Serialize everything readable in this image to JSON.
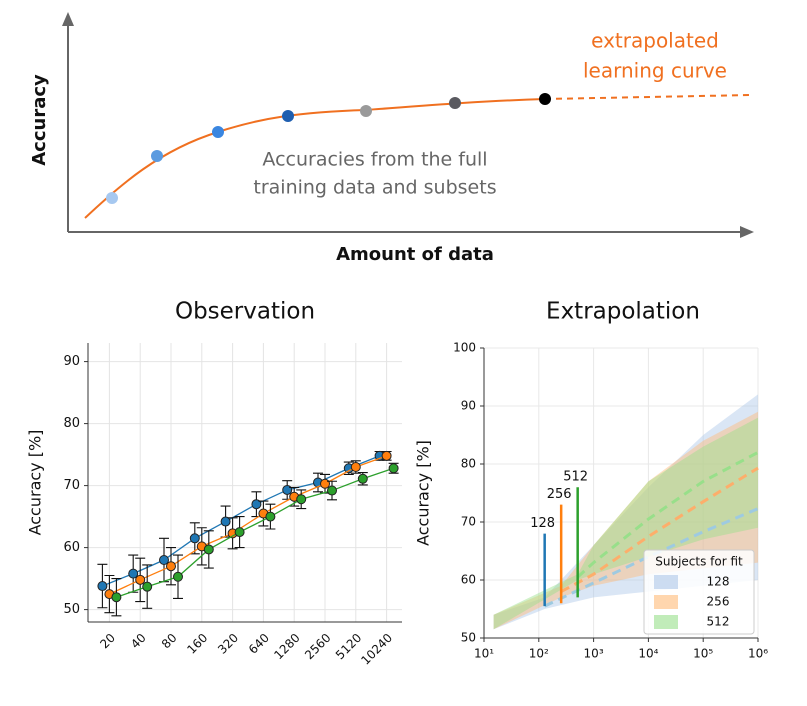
{
  "schematic": {
    "y_label": "Accuracy",
    "x_label": "Amount of data",
    "curve_note": [
      "extrapolated",
      "learning curve"
    ],
    "points_note": [
      "Accuracies from the full",
      "training data and subsets"
    ]
  },
  "chart_data": [
    {
      "type": "errorline",
      "title": "Observation",
      "y_label": "Accuracy [%]",
      "categories": [
        "20",
        "40",
        "80",
        "160",
        "320",
        "640",
        "1280",
        "2560",
        "5120",
        "10240"
      ],
      "ylim": [
        48,
        93
      ],
      "yticks": [
        50,
        60,
        70,
        80,
        90
      ],
      "grid": true,
      "series": [
        {
          "color": "#1f77b4",
          "values": [
            53.8,
            55.8,
            58,
            61.5,
            64.2,
            67,
            69.3,
            70.5,
            72.8,
            74.8
          ],
          "errors": [
            3.5,
            3,
            3.5,
            2.5,
            2.5,
            2,
            1.5,
            1.5,
            1,
            0.7
          ]
        },
        {
          "color": "#ff7f0e",
          "values": [
            52.5,
            54.8,
            57,
            60.2,
            62.3,
            65.5,
            68.2,
            70.3,
            73,
            74.8
          ],
          "errors": [
            3,
            3.5,
            3,
            3,
            2.5,
            2,
            1.5,
            1.5,
            1,
            0.7
          ]
        },
        {
          "color": "#2ca02c",
          "values": [
            52,
            53.7,
            55.3,
            59.7,
            62.5,
            65,
            67.8,
            69.2,
            71.1,
            72.8
          ],
          "errors": [
            3,
            3.5,
            3.5,
            3,
            2.5,
            2,
            1.5,
            1.5,
            1,
            0.8
          ]
        }
      ]
    },
    {
      "type": "band",
      "title": "Extrapolation",
      "y_label": "Accuracy [%]",
      "log_x": true,
      "xlim": [
        10,
        1000000
      ],
      "ylim": [
        50,
        100
      ],
      "xticks": [
        {
          "value": 10,
          "label": "10¹"
        },
        {
          "value": 100,
          "label": "10²"
        },
        {
          "value": 1000,
          "label": "10³"
        },
        {
          "value": 10000,
          "label": "10⁴"
        },
        {
          "value": 100000,
          "label": "10⁵"
        },
        {
          "value": 1000000,
          "label": "10⁶"
        }
      ],
      "yticks": [
        50,
        60,
        70,
        80,
        90,
        100
      ],
      "grid": true,
      "legend_title": "Subjects for fit",
      "legend": "lower right",
      "series": [
        {
          "name": "128",
          "color": "#9ecae1",
          "band_color": "#aec7e8",
          "x": [
            15,
            128,
            1000,
            10000,
            100000,
            1000000
          ],
          "values": [
            null,
            55.5,
            59.5,
            64,
            68.3,
            72.3
          ],
          "lower": [
            51.5,
            55,
            57,
            58,
            59,
            60
          ],
          "upper": [
            54,
            57,
            66,
            76,
            85,
            92
          ]
        },
        {
          "name": "256",
          "color": "#fdae6b",
          "band_color": "#ffbb78",
          "x": [
            15,
            256,
            1000,
            10000,
            100000,
            1000000
          ],
          "values": [
            null,
            58,
            61,
            67.5,
            73.5,
            79.3
          ],
          "lower": [
            51.5,
            57,
            59,
            61,
            62,
            63
          ],
          "upper": [
            54,
            59,
            66,
            77,
            84,
            89
          ]
        },
        {
          "name": "512",
          "color": "#98df8a",
          "band_color": "#98df8a",
          "x": [
            15,
            512,
            1000,
            10000,
            100000,
            1000000
          ],
          "values": [
            null,
            60.5,
            63,
            70.5,
            77,
            82
          ],
          "lower": [
            51.5,
            60,
            61,
            64,
            67,
            69
          ],
          "upper": [
            54,
            61,
            66,
            77,
            83,
            88
          ]
        }
      ],
      "vlines": [
        {
          "x": 128,
          "ymin": 55.5,
          "ymax": 68,
          "label": "128",
          "color": "#1f77b4"
        },
        {
          "x": 256,
          "ymin": 56,
          "ymax": 73,
          "label": "256",
          "color": "#ff7f0e"
        },
        {
          "x": 512,
          "ymin": 57,
          "ymax": 76,
          "label": "512",
          "color": "#2ca02c"
        }
      ]
    }
  ]
}
